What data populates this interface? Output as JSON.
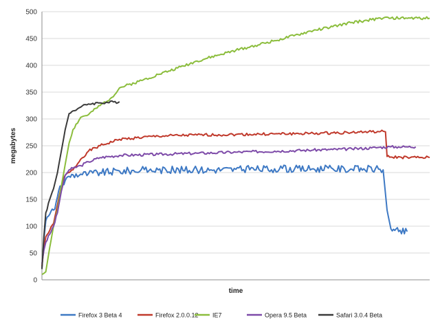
{
  "chart_data": {
    "type": "line",
    "title": "",
    "xlabel": "time",
    "ylabel": "megabytes",
    "ylim": [
      0,
      500
    ],
    "yticks": [
      0,
      50,
      100,
      150,
      200,
      250,
      300,
      350,
      400,
      450,
      500
    ],
    "xlim": [
      0,
      100
    ],
    "grid": "horizontal",
    "legend_position": "bottom",
    "series": [
      {
        "name": "Firefox 3 Beta 4",
        "color": "#3e79c4",
        "x": [
          0,
          0.5,
          1,
          2,
          3,
          4,
          5,
          6,
          7,
          8,
          10,
          12,
          15,
          20,
          30,
          40,
          50,
          60,
          70,
          75,
          78,
          80,
          83,
          86,
          88,
          89,
          90,
          91,
          92,
          94.2
        ],
        "values": [
          22,
          75,
          110,
          122,
          130,
          155,
          175,
          185,
          193,
          196,
          197,
          198,
          200,
          203,
          205,
          205,
          206,
          207,
          207,
          207,
          207,
          206,
          207,
          207,
          205,
          130,
          95,
          92,
          90,
          90
        ]
      },
      {
        "name": "Firefox 2.0.0.12",
        "color": "#c0392b",
        "x": [
          0,
          0.5,
          1,
          2,
          3,
          4,
          5,
          6,
          7,
          8,
          10,
          12,
          15,
          20,
          30,
          40,
          50,
          60,
          70,
          75,
          80,
          85,
          87,
          88,
          88.6,
          89,
          90,
          95,
          100
        ],
        "values": [
          25,
          60,
          80,
          92,
          105,
          140,
          175,
          195,
          200,
          205,
          225,
          240,
          250,
          262,
          268,
          270,
          271,
          272,
          273,
          274,
          275,
          276,
          276,
          277,
          276,
          230,
          229,
          228,
          228
        ]
      },
      {
        "name": "IE7",
        "color": "#8bbd3c",
        "x": [
          0,
          0.5,
          1,
          2,
          3,
          4,
          5,
          6,
          7,
          8,
          10,
          12,
          15,
          18,
          20,
          25,
          30,
          35,
          40,
          45,
          50,
          55,
          60,
          65,
          70,
          75,
          80,
          85,
          88,
          90,
          95,
          100
        ],
        "values": [
          10,
          12,
          15,
          60,
          100,
          130,
          175,
          215,
          255,
          280,
          303,
          308,
          325,
          340,
          358,
          370,
          383,
          395,
          408,
          418,
          428,
          437,
          446,
          455,
          465,
          472,
          480,
          485,
          488,
          488,
          488,
          488
        ]
      },
      {
        "name": "Opera 9.5 Beta",
        "color": "#7d4aa8",
        "x": [
          0,
          0.5,
          1,
          2,
          3,
          4,
          5,
          6,
          7,
          8,
          10,
          12,
          15,
          20,
          30,
          40,
          50,
          60,
          70,
          75,
          80,
          85,
          87,
          90,
          92,
          94,
          96.4
        ],
        "values": [
          30,
          55,
          70,
          85,
          100,
          125,
          165,
          195,
          205,
          208,
          213,
          220,
          228,
          232,
          234,
          236,
          238,
          240,
          242,
          243,
          244,
          246,
          247,
          248,
          248,
          248,
          248
        ]
      },
      {
        "name": "Safari 3.0.4 Beta",
        "color": "#3a3a3a",
        "x": [
          0,
          0.5,
          1,
          2,
          3,
          4,
          5,
          6,
          7,
          8,
          10,
          12,
          15,
          20
        ],
        "values": [
          20,
          80,
          125,
          150,
          170,
          200,
          240,
          280,
          310,
          315,
          322,
          328,
          330,
          332
        ]
      }
    ]
  }
}
